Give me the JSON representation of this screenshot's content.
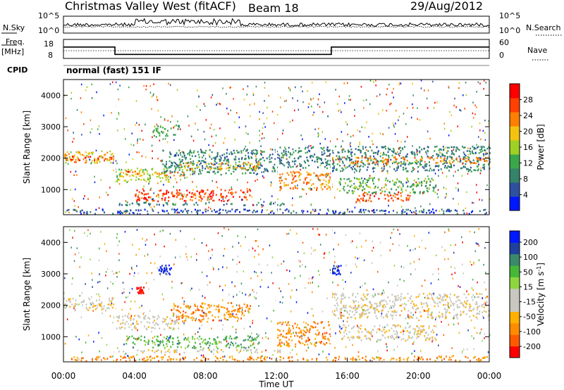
{
  "header": {
    "title": "Christmas Valley West (fitACF)",
    "beam": "Beam 18",
    "date": "29/Aug/2012"
  },
  "noise_panel": {
    "left_label": "N.Sky",
    "right_label": "N.Search",
    "left_ticks": [
      "10^5",
      "10^0"
    ],
    "right_ticks": [
      "10^5",
      "10^0"
    ]
  },
  "freq_panel": {
    "left_label_line1": "Freq.",
    "left_label_line2": "[MHz]",
    "right_label": "Nave",
    "left_ticks": [
      "18",
      "8"
    ],
    "right_ticks": [
      "60",
      "0"
    ],
    "freq_steps": [
      {
        "start": 0.0,
        "end": 2.9,
        "value": 16.5
      },
      {
        "start": 2.9,
        "end": 15.1,
        "value": 11.0
      },
      {
        "start": 15.1,
        "end": 24.0,
        "value": 16.5
      }
    ]
  },
  "cpid": {
    "label": "CPID",
    "value": "normal (fast) 151 IF"
  },
  "colors": {
    "power": [
      "#0018ff",
      "#2e50a0",
      "#35846a",
      "#3aa84a",
      "#9fd024",
      "#f3c310",
      "#ff8000",
      "#ff4000",
      "#ff0000"
    ],
    "velocity": [
      "#ff0000",
      "#ff5a00",
      "#ff8c00",
      "#ffb000",
      "#c8c8c0",
      "#c8c8c0",
      "#8ed640",
      "#46b838",
      "#3a8a6a",
      "#2040a0",
      "#0018ff"
    ]
  },
  "chart_data": [
    {
      "type": "heatmap",
      "quantity": "power",
      "ylabel": "Slant Range [km]",
      "colorbar_label": "Power [dB]",
      "colorbar_ticks": [
        "28",
        "24",
        "20",
        "16",
        "12",
        "8",
        "4"
      ],
      "colorbar_tick_values": [
        28,
        24,
        20,
        16,
        12,
        8,
        4
      ],
      "colorbar_range": [
        0,
        32
      ],
      "y_ticks": [
        "4000",
        "3000",
        "2000",
        "1000"
      ],
      "y_tick_values": [
        4000,
        3000,
        2000,
        1000
      ],
      "ylim": [
        200,
        4500
      ],
      "xlim": [
        0,
        24
      ],
      "features": [
        {
          "t0": 0.0,
          "t1": 2.9,
          "r0": 1850,
          "r1": 2250,
          "value": 20
        },
        {
          "t0": 0.0,
          "t1": 2.9,
          "r0": 1950,
          "r1": 2080,
          "value": 28
        },
        {
          "t0": 2.9,
          "t1": 6.0,
          "r0": 1250,
          "r1": 1700,
          "value": 16
        },
        {
          "t0": 3.5,
          "t1": 7.0,
          "r0": 1450,
          "r1": 1600,
          "value": 24
        },
        {
          "t0": 5.5,
          "t1": 12.0,
          "r0": 1500,
          "r1": 2300,
          "value": 9
        },
        {
          "t0": 6.5,
          "t1": 11.0,
          "r0": 1650,
          "r1": 1900,
          "value": 18
        },
        {
          "t0": 4.0,
          "t1": 10.5,
          "r0": 650,
          "r1": 1050,
          "value": 27
        },
        {
          "t0": 3.0,
          "t1": 12.5,
          "r0": 520,
          "r1": 620,
          "value": 10
        },
        {
          "t0": 12.0,
          "t1": 15.1,
          "r0": 1000,
          "r1": 1600,
          "value": 22
        },
        {
          "t0": 12.0,
          "t1": 15.1,
          "r0": 1700,
          "r1": 2400,
          "value": 8
        },
        {
          "t0": 15.1,
          "t1": 24.0,
          "r0": 1600,
          "r1": 2400,
          "value": 8
        },
        {
          "t0": 15.1,
          "t1": 24.0,
          "r0": 1850,
          "r1": 2050,
          "value": 24
        },
        {
          "t0": 15.5,
          "t1": 21.0,
          "r0": 900,
          "r1": 1400,
          "value": 12
        },
        {
          "t0": 16.5,
          "t1": 19.5,
          "r0": 650,
          "r1": 950,
          "value": 26
        },
        {
          "t0": 5.0,
          "t1": 6.5,
          "r0": 2700,
          "r1": 3100,
          "value": 14
        },
        {
          "t0": 0.0,
          "t1": 24.0,
          "r0": 250,
          "r1": 400,
          "value": 6
        }
      ]
    },
    {
      "type": "heatmap",
      "quantity": "velocity",
      "ylabel": "Slant Range [km]",
      "xlabel": "Time UT",
      "colorbar_label": "Velocity [m s^-1]",
      "colorbar_ticks": [
        "200",
        "100",
        "50",
        "15",
        "-15",
        "-50",
        "-100",
        "-200"
      ],
      "colorbar_tick_values": [
        200,
        100,
        50,
        15,
        -15,
        -50,
        -100,
        -200
      ],
      "y_ticks": [
        "4000",
        "3000",
        "2000",
        "1000"
      ],
      "y_tick_values": [
        4000,
        3000,
        2000,
        1000
      ],
      "x_ticks": [
        "00:00",
        "04:00",
        "08:00",
        "12:00",
        "16:00",
        "20:00",
        "00:00"
      ],
      "x_tick_values": [
        0,
        4,
        8,
        12,
        16,
        20,
        24
      ],
      "ylim": [
        200,
        4500
      ],
      "xlim": [
        0,
        24
      ],
      "features": [
        {
          "t0": 0.0,
          "t1": 2.9,
          "r0": 1850,
          "r1": 2250,
          "value": 0
        },
        {
          "t0": 2.9,
          "t1": 6.5,
          "r0": 1250,
          "r1": 1700,
          "value": -5
        },
        {
          "t0": 6.0,
          "t1": 10.5,
          "r0": 1500,
          "r1": 2100,
          "value": -60
        },
        {
          "t0": 3.5,
          "t1": 11.0,
          "r0": 650,
          "r1": 1050,
          "value": 60
        },
        {
          "t0": 3.0,
          "t1": 12.5,
          "r0": 520,
          "r1": 620,
          "value": 0
        },
        {
          "t0": 12.0,
          "t1": 15.1,
          "r0": 700,
          "r1": 1500,
          "value": -90
        },
        {
          "t0": 15.1,
          "t1": 24.0,
          "r0": 1600,
          "r1": 2400,
          "value": 0
        },
        {
          "t0": 15.5,
          "t1": 21.0,
          "r0": 900,
          "r1": 1400,
          "value": 0
        },
        {
          "t0": 5.3,
          "t1": 6.1,
          "r0": 3000,
          "r1": 3300,
          "value": 200
        },
        {
          "t0": 4.1,
          "t1": 4.5,
          "r0": 2400,
          "r1": 2600,
          "value": -200
        },
        {
          "t0": 15.0,
          "t1": 15.6,
          "r0": 3000,
          "r1": 3300,
          "value": 200
        },
        {
          "t0": 0.0,
          "t1": 24.0,
          "r0": 250,
          "r1": 400,
          "value": -80
        }
      ]
    }
  ]
}
